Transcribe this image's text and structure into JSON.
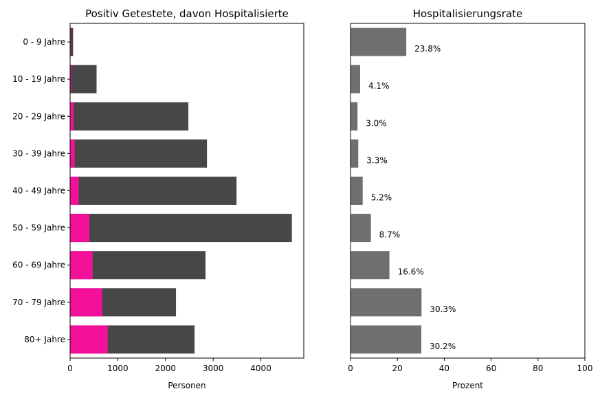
{
  "chart_data": [
    {
      "type": "bar",
      "orientation": "horizontal",
      "stacked": "overlay",
      "title": "Positiv Getestete, davon Hospitalisierte",
      "xlabel": "Personen",
      "ylabel": "",
      "categories": [
        "0 - 9 Jahre",
        "10 - 19 Jahre",
        "20 - 29 Jahre",
        "30 - 39 Jahre",
        "40 - 49 Jahre",
        "50 - 59 Jahre",
        "60 - 69 Jahre",
        "70 - 79 Jahre",
        "80+ Jahre"
      ],
      "xlim": [
        0,
        4900
      ],
      "xticks": [
        0,
        1000,
        2000,
        3000,
        4000
      ],
      "grid": false,
      "series": [
        {
          "values": [
            63,
            555,
            2480,
            2870,
            3490,
            4650,
            2840,
            2220,
            2610
          ],
          "color": "#474747"
        },
        {
          "values": [
            15,
            23,
            74,
            95,
            181,
            405,
            471,
            672,
            788
          ],
          "color": "#f4119a"
        }
      ]
    },
    {
      "type": "bar",
      "orientation": "horizontal",
      "title": "Hospitalisierungsrate",
      "xlabel": "Prozent",
      "ylabel": "",
      "categories": [
        "0 - 9 Jahre",
        "10 - 19 Jahre",
        "20 - 29 Jahre",
        "30 - 39 Jahre",
        "40 - 49 Jahre",
        "50 - 59 Jahre",
        "60 - 69 Jahre",
        "70 - 79 Jahre",
        "80+ Jahre"
      ],
      "xlim": [
        0,
        100
      ],
      "xticks": [
        0,
        20,
        40,
        60,
        80,
        100
      ],
      "grid": false,
      "values": [
        23.8,
        4.1,
        3.0,
        3.3,
        5.2,
        8.7,
        16.6,
        30.3,
        30.2
      ],
      "data_labels": [
        "23.8%",
        "4.1%",
        "3.0%",
        "3.3%",
        "5.2%",
        "8.7%",
        "16.6%",
        "30.3%",
        "30.2%"
      ],
      "color": "#6f6f6f"
    }
  ]
}
